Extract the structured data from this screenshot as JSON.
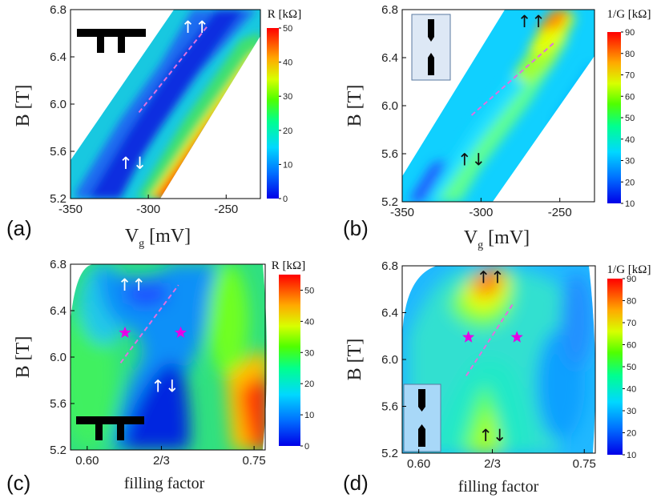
{
  "figure": {
    "panel_labels": [
      "(a)",
      "(b)",
      "(c)",
      "(d)"
    ]
  },
  "chart_data": [
    {
      "id": "a",
      "type": "heatmap",
      "panel_label": "(a)",
      "xlabel": "V",
      "xlabel_sub": "g",
      "xlabel_unit": " [mV]",
      "ylabel": "B [T]",
      "x_ticks": [
        "-350",
        "-300",
        "-250"
      ],
      "x_tick_values": [
        -350,
        -300,
        -250
      ],
      "y_ticks": [
        "6.8",
        "6.4",
        "6.0",
        "5.6",
        "5.2"
      ],
      "y_tick_values": [
        6.8,
        6.4,
        6.0,
        5.6,
        5.2
      ],
      "xlim": [
        -350,
        -228
      ],
      "ylim": [
        5.2,
        6.8
      ],
      "colorbar": {
        "title": "R [kΩ]",
        "ticks": [
          "50",
          "40",
          "30",
          "20",
          "10",
          "0"
        ],
        "range": [
          0,
          50
        ]
      },
      "annotations": [
        {
          "text": "↑↑",
          "x": -270,
          "y": 6.65,
          "color": "#ffffff"
        },
        {
          "text": "↑↓",
          "x": -310,
          "y": 5.5,
          "color": "#ffffff"
        }
      ],
      "dashed_line": {
        "from": [
          -306,
          5.93
        ],
        "to": [
          -262,
          6.66
        ],
        "color": "#e070e0"
      },
      "inset": "gate-pattern"
    },
    {
      "id": "b",
      "type": "heatmap",
      "panel_label": "(b)",
      "xlabel": "V",
      "xlabel_sub": "g",
      "xlabel_unit": " [mV]",
      "ylabel": "B [T]",
      "x_ticks": [
        "-350",
        "-300",
        "-250"
      ],
      "x_tick_values": [
        -350,
        -300,
        -250
      ],
      "y_ticks": [
        "6.8",
        "6.4",
        "6.0",
        "5.6",
        "5.2"
      ],
      "y_tick_values": [
        6.8,
        6.4,
        6.0,
        5.6,
        5.2
      ],
      "xlim": [
        -350,
        -228
      ],
      "ylim": [
        5.2,
        6.8
      ],
      "colorbar": {
        "title": "1/G [kΩ]",
        "ticks": [
          "90",
          "80",
          "70",
          "60",
          "50",
          "40",
          "30",
          "20",
          "10"
        ],
        "range": [
          10,
          90
        ]
      },
      "annotations": [
        {
          "text": "↑↑",
          "x": -268,
          "y": 6.7,
          "color": "#111111"
        },
        {
          "text": "↑↓",
          "x": -306,
          "y": 5.55,
          "color": "#111111"
        }
      ],
      "dashed_line": {
        "from": [
          -306,
          5.92
        ],
        "to": [
          -254,
          6.52
        ],
        "color": "#e070e0"
      },
      "inset": "point-contact"
    },
    {
      "id": "c",
      "type": "heatmap",
      "panel_label": "(c)",
      "xlabel": "filling factor",
      "ylabel": "B [T]",
      "x_ticks": [
        "0.60",
        "2/3",
        "0.75"
      ],
      "x_tick_values": [
        0.6,
        0.6667,
        0.75
      ],
      "y_ticks": [
        "6.8",
        "6.4",
        "6.0",
        "5.6",
        "5.2"
      ],
      "y_tick_values": [
        6.8,
        6.4,
        6.0,
        5.6,
        5.2
      ],
      "xlim": [
        0.585,
        0.76
      ],
      "ylim": [
        5.2,
        6.8
      ],
      "colorbar": {
        "title": "R [kΩ]",
        "ticks": [
          "50",
          "40",
          "30",
          "20",
          "10",
          "0"
        ],
        "range": [
          0,
          55
        ]
      },
      "annotations": [
        {
          "text": "↑↑",
          "x": 0.64,
          "y": 6.62,
          "color": "#ffffff"
        },
        {
          "text": "↑↓",
          "x": 0.67,
          "y": 5.75,
          "color": "#ffffff"
        }
      ],
      "stars": [
        {
          "x": 0.634,
          "y": 6.21
        },
        {
          "x": 0.684,
          "y": 6.21
        }
      ],
      "dashed_line": {
        "from": [
          0.63,
          5.95
        ],
        "to": [
          0.682,
          6.62
        ],
        "color": "#e070e0"
      },
      "inset": "gate-pattern"
    },
    {
      "id": "d",
      "type": "heatmap",
      "panel_label": "(d)",
      "xlabel": "filling factor",
      "ylabel": "B [T]",
      "x_ticks": [
        "0.60",
        "2/3",
        "0.75"
      ],
      "x_tick_values": [
        0.6,
        0.6667,
        0.75
      ],
      "y_ticks": [
        "6.8",
        "6.4",
        "6.0",
        "5.6",
        "5.2"
      ],
      "y_tick_values": [
        6.8,
        6.4,
        6.0,
        5.6,
        5.2
      ],
      "xlim": [
        0.585,
        0.76
      ],
      "ylim": [
        5.2,
        6.8
      ],
      "colorbar": {
        "title": "1/G [kΩ]",
        "ticks": [
          "90",
          "80",
          "70",
          "60",
          "50",
          "40",
          "30",
          "20",
          "10"
        ],
        "range": [
          10,
          90
        ]
      },
      "annotations": [
        {
          "text": "↑↑",
          "x": 0.665,
          "y": 6.7,
          "color": "#111111"
        },
        {
          "text": "↑↓",
          "x": 0.667,
          "y": 5.35,
          "color": "#111111"
        }
      ],
      "stars": [
        {
          "x": 0.645,
          "y": 6.19
        },
        {
          "x": 0.689,
          "y": 6.19
        }
      ],
      "dashed_line": {
        "from": [
          0.643,
          5.86
        ],
        "to": [
          0.685,
          6.47
        ],
        "color": "#e070e0"
      },
      "inset": "point-contact"
    }
  ]
}
